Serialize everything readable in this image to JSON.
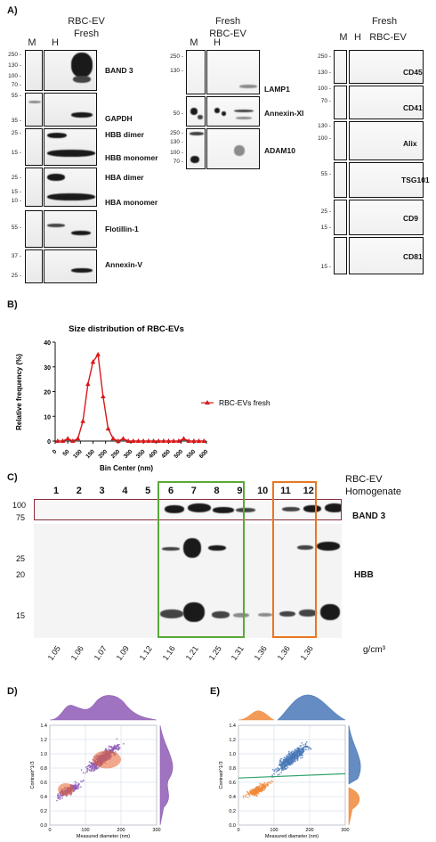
{
  "panel_a": {
    "label": "A)",
    "left": {
      "lanes": [
        "M",
        "H"
      ],
      "header_line1": "RBC-EV",
      "header_line2": "Fresh",
      "proteins": [
        "BAND 3",
        "GAPDH",
        "HBB dimer",
        "HBB monomer",
        "HBA dimer",
        "HBA monomer",
        "Flotillin-1",
        "Annexin-V"
      ],
      "mw": [
        "250 -",
        "130 -",
        "100 -",
        "70 -",
        "55 -",
        "35 -",
        "25 -",
        "15 -",
        "25 -",
        "15 -",
        "10 -",
        "55 -",
        "37 -",
        "25 -"
      ]
    },
    "middle": {
      "header_line1": "Fresh",
      "header_line2": "RBC-EV",
      "lanes": [
        "M",
        "H"
      ],
      "proteins": [
        "LAMP1",
        "Annexin-XI",
        "ADAM10"
      ],
      "mw": [
        "250 -",
        "130 -",
        "50 -",
        "250 -",
        "130 -",
        "100 -",
        "70 -"
      ]
    },
    "right": {
      "header_line1": "Fresh",
      "lanes": [
        "M",
        "H"
      ],
      "header_line2": "RBC-EV",
      "proteins": [
        "CD45",
        "CD41",
        "Alix",
        "TSG101",
        "CD9",
        "CD81"
      ],
      "mw": [
        "250 -",
        "130 -",
        "100 -",
        "70 -",
        "130 -",
        "100 -",
        "55 -",
        "25 -",
        "15 -",
        "15 -"
      ]
    }
  },
  "panel_b": {
    "label": "B)",
    "chart_data": {
      "type": "line",
      "title": "Size distribution of RBC-EVs",
      "xlabel": "Bin Center (nm)",
      "ylabel": "Relative frequency (%)",
      "xlim": [
        0,
        600
      ],
      "ylim": [
        0,
        40
      ],
      "xticks": [
        "0",
        "50",
        "100",
        "150",
        "200",
        "250",
        "300",
        "350",
        "400",
        "450",
        "500",
        "550",
        "600"
      ],
      "yticks": [
        "0",
        "10",
        "20",
        "30",
        "40"
      ],
      "series": [
        {
          "name": "RBC-EVs fresh",
          "color": "#d7191c",
          "x": [
            10,
            30,
            50,
            70,
            90,
            110,
            130,
            150,
            170,
            190,
            210,
            230,
            250,
            270,
            290,
            310,
            330,
            350,
            370,
            390,
            410,
            430,
            450,
            470,
            490,
            510,
            530,
            550,
            570,
            590
          ],
          "y": [
            0,
            0,
            1,
            0,
            1,
            8,
            23,
            32,
            35,
            18,
            5,
            1,
            0,
            1,
            0,
            0,
            0,
            0,
            0,
            0,
            0,
            0,
            0,
            0,
            0,
            1,
            0,
            0,
            0,
            0
          ]
        }
      ]
    }
  },
  "panel_c": {
    "label": "C)",
    "fractions": [
      "1",
      "2",
      "3",
      "4",
      "5",
      "6",
      "7",
      "8",
      "9",
      "10",
      "11",
      "12"
    ],
    "densities": [
      "1.05",
      "1.06",
      "1.07",
      "1.09",
      "1.12",
      "1.16",
      "1.21",
      "1.25",
      "1.31",
      "1.36",
      "1.36",
      "1.36"
    ],
    "density_unit": "g/cm³",
    "header_line1": "RBC-EV",
    "header_line2": "Homogenate",
    "band3_label": "BAND 3",
    "hbb_label": "HBB",
    "mw_top": [
      "100",
      "75"
    ],
    "mw_bottom": [
      "25",
      "20",
      "15"
    ],
    "highlight_green": "#5aa83a",
    "highlight_orange": "#e87722"
  },
  "panel_d": {
    "label": "D)",
    "xlabel": "Measured diameter (nm)",
    "ylabel": "Contrast^1/3",
    "xticks": [
      "0",
      "100",
      "200",
      "300"
    ],
    "yticks": [
      "0.0",
      "0.2",
      "0.4",
      "0.6",
      "0.8",
      "1.0",
      "1.2",
      "1.4"
    ],
    "color": "#8e5bb5"
  },
  "panel_e": {
    "label": "E)",
    "xlabel": "Measured diameter (nm)",
    "ylabel": "Contrast^1/3",
    "xticks": [
      "0",
      "100",
      "200",
      "300"
    ],
    "yticks": [
      "0.0",
      "0.2",
      "0.4",
      "0.6",
      "0.8",
      "1.0",
      "1.2",
      "1.4"
    ],
    "color_high": "#4a78b8",
    "color_low": "#f08a3c",
    "threshold_color": "#2fa36b"
  }
}
